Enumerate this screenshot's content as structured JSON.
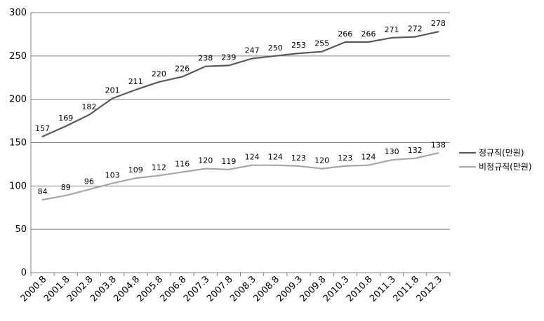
{
  "chart_data": {
    "type": "line",
    "categories": [
      "2000.8",
      "2001.8",
      "2002.8",
      "2003.8",
      "2004.8",
      "2005.8",
      "2006.8",
      "2007.3",
      "2007.8",
      "2008.3",
      "2008.8",
      "2009.3",
      "2009.8",
      "2010.3",
      "2010.8",
      "2011.3",
      "2011.8",
      "2012.3"
    ],
    "series": [
      {
        "name": "정규직(만원)",
        "color": "#595959",
        "values": [
          157,
          169,
          182,
          201,
          211,
          220,
          226,
          238,
          239,
          247,
          250,
          253,
          255,
          266,
          266,
          271,
          272,
          278
        ]
      },
      {
        "name": "비정규직(만원)",
        "color": "#a6a6a6",
        "values": [
          84,
          89,
          96,
          103,
          109,
          112,
          116,
          120,
          119,
          124,
          124,
          123,
          120,
          123,
          124,
          130,
          132,
          138
        ]
      }
    ],
    "ylim": [
      0,
      300
    ],
    "yticks": [
      0,
      50,
      100,
      150,
      200,
      250,
      300
    ],
    "grid": "horizontal",
    "legend": "right",
    "data_labels": true
  }
}
